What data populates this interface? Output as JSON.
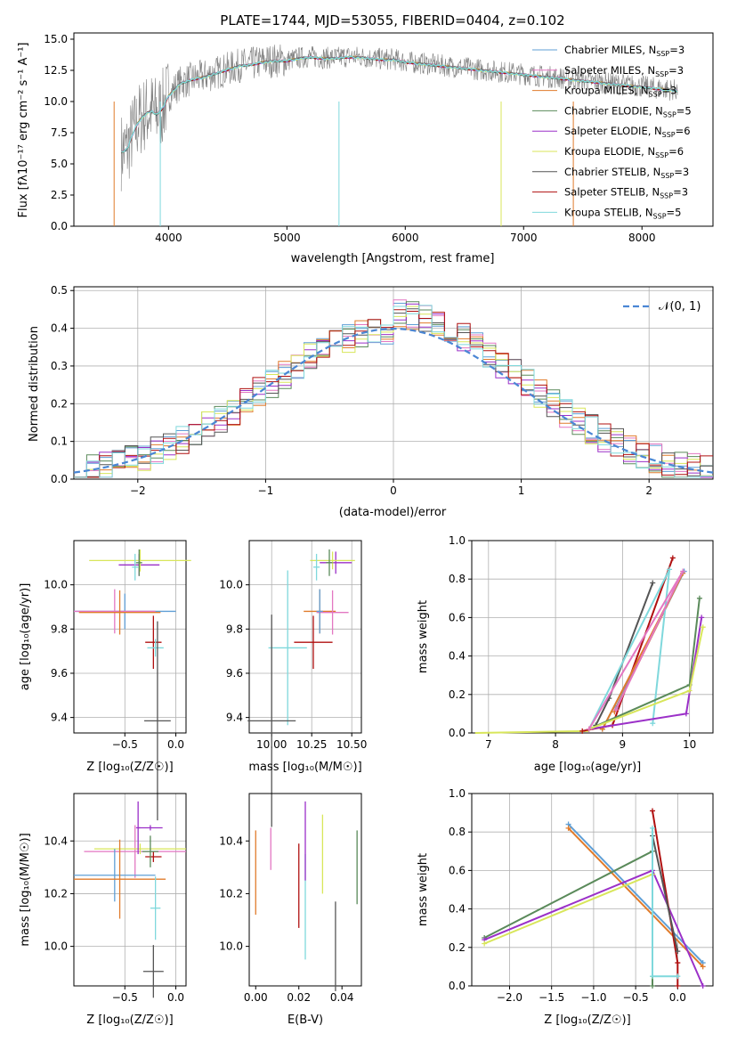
{
  "figure_title": "PLATE=1744, MJD=53055, FIBERID=0404, z=0.102",
  "legend": [
    {
      "label": "Chabrier MILES, N_SSP=3",
      "color": "#5f9fd6"
    },
    {
      "label": "Salpeter MILES, N_SSP=3",
      "color": "#e377c2"
    },
    {
      "label": "Kroupa MILES, N_SSP=3",
      "color": "#e07b2b"
    },
    {
      "label": "Chabrier ELODIE, N_SSP=5",
      "color": "#5a8a5a"
    },
    {
      "label": "Salpeter ELODIE, N_SSP=6",
      "color": "#9b30c8"
    },
    {
      "label": "Kroupa ELODIE, N_SSP=6",
      "color": "#d8e65a"
    },
    {
      "label": "Chabrier STELIB, N_SSP=3",
      "color": "#555555"
    },
    {
      "label": "Salpeter STELIB, N_SSP=3",
      "color": "#b01010"
    },
    {
      "label": "Kroupa STELIB, N_SSP=5",
      "color": "#7fd8dc"
    }
  ],
  "chart_data": [
    {
      "id": "spectrum",
      "type": "line",
      "title": "PLATE=1744, MJD=53055, FIBERID=0404, z=0.102",
      "xlabel": "wavelength [Angstrom, rest frame]",
      "ylabel": "Flux [f_λ 10^-17 erg cm^-2 s^-1 A^-1]",
      "xlim": [
        3200,
        8600
      ],
      "ylim": [
        0,
        15.5
      ],
      "xticks": [
        4000,
        5000,
        6000,
        7000,
        8000
      ],
      "yticks": [
        0.0,
        2.5,
        5.0,
        7.5,
        10.0,
        12.5,
        15.0
      ],
      "series": [
        {
          "name": "data",
          "x": [
            3600,
            3650,
            3700,
            3750,
            3800,
            3850,
            3900,
            3950,
            4000,
            4100,
            4200,
            4300,
            4400,
            4500,
            4600,
            4700,
            4800,
            4900,
            5000,
            5100,
            5200,
            5300,
            5400,
            5500,
            5600,
            5700,
            5800,
            5900,
            6000,
            6100,
            6200,
            6300,
            6400,
            6500,
            6600,
            6700,
            6800,
            6900,
            7000,
            7100,
            7200,
            7300,
            7400,
            7500,
            7600,
            7700,
            7800,
            7900,
            8000,
            8100,
            8200,
            8300
          ],
          "y": [
            6.0,
            6.2,
            7.5,
            8.5,
            9.0,
            9.3,
            9.0,
            9.5,
            10.5,
            11.5,
            11.8,
            12.0,
            12.3,
            12.6,
            12.9,
            13.0,
            13.2,
            13.3,
            13.3,
            13.5,
            13.6,
            13.5,
            13.5,
            13.6,
            13.6,
            13.5,
            13.4,
            13.4,
            13.2,
            13.1,
            13.0,
            12.9,
            12.8,
            12.7,
            12.6,
            12.5,
            12.4,
            12.3,
            12.2,
            12.1,
            12.0,
            11.9,
            11.8,
            11.7,
            11.6,
            11.5,
            11.4,
            11.3,
            11.2,
            11.1,
            11.0,
            10.9
          ]
        }
      ]
    },
    {
      "id": "residual-hist",
      "type": "bar",
      "xlabel": "(data-model)/error",
      "ylabel": "Normed distribution",
      "xlim": [
        -2.5,
        2.5
      ],
      "ylim": [
        0,
        0.51
      ],
      "xticks": [
        -2,
        -1,
        0,
        1,
        2
      ],
      "yticks": [
        0.0,
        0.1,
        0.2,
        0.3,
        0.4,
        0.5
      ],
      "legend_label": "N(0, 1)",
      "legend_position": "upper right"
    },
    {
      "id": "age-vs-Z",
      "type": "scatter",
      "xlabel": "Z [log10(Z/Z☉)]",
      "ylabel": "age [log10(age/yr)]",
      "xlim": [
        -1.0,
        0.1
      ],
      "ylim": [
        9.33,
        10.2
      ],
      "xticks": [
        -0.5,
        0.0
      ],
      "yticks": [
        9.4,
        9.6,
        9.8,
        10.0
      ],
      "points": [
        {
          "x": -0.36,
          "y": 10.09,
          "xerr": 0.2,
          "yerr": 0.05,
          "series": 4
        },
        {
          "x": -0.35,
          "y": 10.11,
          "xerr": 0.5,
          "yerr": 0.05,
          "series": 5
        },
        {
          "x": -0.36,
          "y": 10.1,
          "xerr": 0.03,
          "yerr": 0.06,
          "series": 3
        },
        {
          "x": -0.4,
          "y": 10.08,
          "xerr": 0.03,
          "yerr": 0.06,
          "series": 8
        },
        {
          "x": -0.5,
          "y": 9.88,
          "xerr": 0.5,
          "yerr": 0.08,
          "series": 0
        },
        {
          "x": -0.6,
          "y": 9.88,
          "xerr": 0.4,
          "yerr": 0.1,
          "series": 1
        },
        {
          "x": -0.55,
          "y": 9.875,
          "xerr": 0.4,
          "yerr": 0.1,
          "series": 2
        },
        {
          "x": -0.22,
          "y": 9.74,
          "xerr": 0.08,
          "yerr": 0.12,
          "series": 7
        },
        {
          "x": -0.2,
          "y": 9.715,
          "xerr": 0.08,
          "yerr": 0.04,
          "series": 8
        },
        {
          "x": -0.18,
          "y": 9.385,
          "xerr": 0.13,
          "yerr": 0.45,
          "series": 6
        }
      ]
    },
    {
      "id": "age-vs-mass",
      "type": "scatter",
      "xlabel": "mass [log10(M/M☉)]",
      "ylabel": "",
      "xlim": [
        9.86,
        10.56
      ],
      "ylim": [
        9.33,
        10.2
      ],
      "xticks": [
        10.0,
        10.25,
        10.5
      ],
      "yticks": [
        9.4,
        9.6,
        9.8,
        10.0
      ]
    },
    {
      "id": "weight-vs-age",
      "type": "line",
      "xlabel": "age [log10(age/yr)]",
      "ylabel": "mass weight",
      "xlim": [
        6.75,
        10.35
      ],
      "ylim": [
        0,
        1.0
      ],
      "xticks": [
        7,
        8,
        9,
        10
      ],
      "yticks": [
        0.0,
        0.2,
        0.4,
        0.6,
        0.8,
        1.0
      ],
      "series": [
        {
          "series": 6,
          "x": [
            8.6,
            8.8,
            9.45
          ],
          "y": [
            0.04,
            0.18,
            0.78
          ]
        },
        {
          "series": 7,
          "x": [
            8.4,
            8.85,
            9.75
          ],
          "y": [
            0.01,
            0.04,
            0.91
          ]
        },
        {
          "series": 0,
          "x": [
            8.7,
            9.92,
            8.9
          ],
          "y": [
            0.02,
            0.84,
            0.13
          ]
        },
        {
          "series": 2,
          "x": [
            8.7,
            9.9,
            8.88
          ],
          "y": [
            0.02,
            0.83,
            0.11
          ]
        },
        {
          "series": 8,
          "x": [
            8.5,
            9.7,
            9.45
          ],
          "y": [
            0.02,
            0.85,
            0.05
          ]
        },
        {
          "series": 3,
          "x": [
            8.5,
            10.0,
            10.15
          ],
          "y": [
            0.02,
            0.25,
            0.7
          ]
        },
        {
          "series": 4,
          "x": [
            8.5,
            9.95,
            10.18
          ],
          "y": [
            0.02,
            0.1,
            0.6
          ]
        },
        {
          "series": 5,
          "x": [
            8.5,
            10.0,
            10.2
          ],
          "y": [
            0.02,
            0.22,
            0.55
          ]
        },
        {
          "series": 1,
          "x": [
            8.5,
            9.9,
            8.9
          ],
          "y": [
            0.02,
            0.84,
            0.12
          ]
        }
      ]
    },
    {
      "id": "mass-vs-Z",
      "type": "scatter",
      "xlabel": "Z [log10(Z/Z☉)]",
      "ylabel": "mass [log10(M/M☉)]",
      "xlim": [
        -1.0,
        0.1
      ],
      "ylim": [
        9.85,
        10.58
      ],
      "xticks": [
        -0.5,
        0.0
      ],
      "yticks": [
        10.0,
        10.2,
        10.4
      ]
    },
    {
      "id": "mass-vs-EBV",
      "type": "scatter",
      "xlabel": "E(B-V)",
      "ylabel": "",
      "xlim": [
        -0.003,
        0.049
      ],
      "ylim": [
        9.85,
        10.58
      ],
      "xticks": [
        0.0,
        0.02,
        0.04
      ],
      "yticks": [
        10.0,
        10.2,
        10.4
      ],
      "points": [
        {
          "x": 0.0,
          "y": 10.28,
          "yerr": 0.16,
          "series": 2
        },
        {
          "x": 0.007,
          "y": 10.37,
          "yerr": 0.08,
          "series": 1
        },
        {
          "x": 0.02,
          "y": 10.23,
          "yerr": 0.16,
          "series": 7
        },
        {
          "x": 0.023,
          "y": 10.15,
          "yerr": 0.2,
          "series": 8
        },
        {
          "x": 0.023,
          "y": 10.4,
          "yerr": 0.15,
          "series": 4
        },
        {
          "x": 0.031,
          "y": 10.35,
          "yerr": 0.15,
          "series": 5
        },
        {
          "x": 0.037,
          "y": 10.0,
          "yerr": 0.17,
          "series": 6
        },
        {
          "x": 0.047,
          "y": 10.3,
          "yerr": 0.14,
          "series": 3
        }
      ]
    },
    {
      "id": "weight-vs-Z",
      "type": "line",
      "xlabel": "Z [log10(Z/Z☉)]",
      "ylabel": "mass weight",
      "xlim": [
        -2.45,
        0.42
      ],
      "ylim": [
        0,
        1.0
      ],
      "xticks": [
        -2.0,
        -1.5,
        -1.0,
        -0.5,
        0.0
      ],
      "yticks": [
        0.0,
        0.2,
        0.4,
        0.6,
        0.8,
        1.0
      ]
    }
  ],
  "panel_labels": {
    "p1": {
      "title": "PLATE=1744, MJD=53055, FIBERID=0404, z=0.102",
      "xlabel": "wavelength [Angstrom, rest frame]",
      "ylabel": "Flux [fλ10⁻¹⁷ erg cm⁻² s⁻¹ A⁻¹]"
    },
    "p2": {
      "xlabel": "(data-model)/error",
      "ylabel": "Normed distribution",
      "legend": "𝒩(0, 1)"
    },
    "p3": {
      "xlabel": "Z [log₁₀(Z/Z☉)]",
      "ylabel": "age  [log₁₀(age/yr)]"
    },
    "p4": {
      "xlabel": "mass [log₁₀(M/M☉)]"
    },
    "p5": {
      "xlabel": "age  [log₁₀(age/yr)]",
      "ylabel": "mass weight"
    },
    "p6": {
      "xlabel": "Z [log₁₀(Z/Z☉)]",
      "ylabel": "mass [log₁₀(M/M☉)]"
    },
    "p7": {
      "xlabel": "E(B-V)"
    },
    "p8": {
      "xlabel": "Z [log₁₀(Z/Z☉)]",
      "ylabel": "mass weight"
    }
  }
}
